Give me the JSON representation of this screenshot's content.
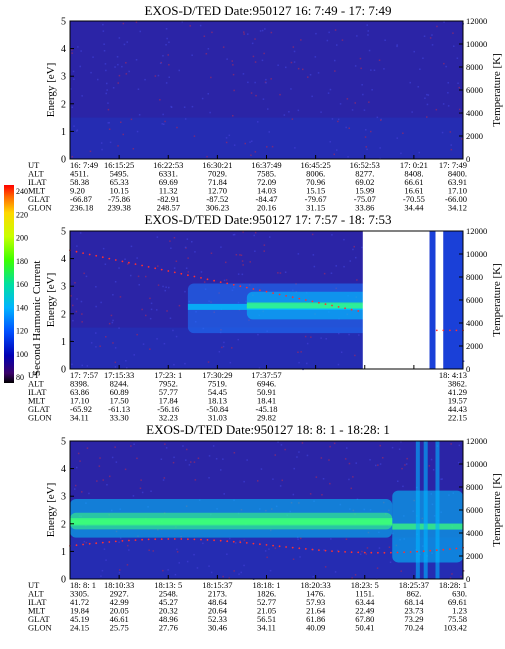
{
  "colorbar": {
    "label": "Second Harmonic Current",
    "ticks": [
      "240",
      "220",
      "200",
      "180",
      "160",
      "140",
      "120",
      "100",
      "80"
    ],
    "colors": [
      "#ff0000",
      "#ff6a00",
      "#ffd800",
      "#c8ff00",
      "#3cff00",
      "#00e0a0",
      "#00b4ff",
      "#0050ff",
      "#0000b4",
      "#3a006a",
      "#000000"
    ]
  },
  "chart_data": [
    {
      "type": "heatmap",
      "title": "EXOS-D/TED  Date:950127  16: 7:49 - 17: 7:49",
      "ylabel": "Energy [eV]",
      "ylabel_right": "Temperature [K]",
      "ylim": [
        0,
        5
      ],
      "ylim_right": [
        0,
        12000
      ],
      "yticks": [
        "0",
        "1",
        "2",
        "3",
        "4",
        "5"
      ],
      "yticks_right": [
        "0",
        "2000",
        "4000",
        "6000",
        "8000",
        "10000",
        "12000"
      ],
      "bands": [],
      "table": {
        "rows": [
          {
            "label": "UT",
            "values": [
              "16: 7:49",
              "16:15:25",
              "16:22:53",
              "16:30:21",
              "16:37:49",
              "16:45:25",
              "16:52:53",
              "17: 0:21",
              "17: 7:49"
            ]
          },
          {
            "label": "ALT",
            "values": [
              "4511.",
              "5495.",
              "6331.",
              "7029.",
              "7585.",
              "8006.",
              "8277.",
              "8408.",
              "8400."
            ]
          },
          {
            "label": "ILAT",
            "values": [
              "58.38",
              "65.33",
              "69.69",
              "71.84",
              "72.09",
              "70.96",
              "69.02",
              "66.61",
              "63.91"
            ]
          },
          {
            "label": "MLT",
            "values": [
              "9.20",
              "10.15",
              "11.32",
              "12.70",
              "14.03",
              "15.15",
              "15.99",
              "16.61",
              "17.10"
            ]
          },
          {
            "label": "GLAT",
            "values": [
              "-66.87",
              "-75.86",
              "-82.91",
              "-87.52",
              "-84.47",
              "-79.67",
              "-75.07",
              "-70.55",
              "-66.00"
            ]
          },
          {
            "label": "GLON",
            "values": [
              "236.18",
              "239.38",
              "248.57",
              "306.23",
              "20.16",
              "31.15",
              "33.86",
              "34.44",
              "34.12"
            ]
          }
        ]
      }
    },
    {
      "type": "heatmap",
      "title": "EXOS-D/TED  Date:950127  17: 7:57 - 18: 7:53",
      "ylabel": "Energy [eV]",
      "ylabel_right": "Temperature [K]",
      "ylim": [
        0,
        5
      ],
      "ylim_right": [
        0,
        12000
      ],
      "yticks": [
        "0",
        "1",
        "2",
        "3",
        "4",
        "5"
      ],
      "yticks_right": [
        "0",
        "2000",
        "4000",
        "6000",
        "8000",
        "10000",
        "12000"
      ],
      "bands": [
        {
          "t0": 0.3,
          "t1": 0.76,
          "e0": 1.3,
          "e1": 3.1,
          "core": 2.25,
          "level": 0.55
        },
        {
          "t0": 0.45,
          "t1": 0.76,
          "e0": 1.8,
          "e1": 2.8,
          "core": 2.3,
          "level": 0.75
        }
      ],
      "table": {
        "rows": [
          {
            "label": "UT",
            "values": [
              "17: 7:57",
              "17:15:33",
              "17:23: 1",
              "17:30:29",
              "17:37:57",
              "",
              "",
              "",
              "18: 4:13"
            ]
          },
          {
            "label": "ALT",
            "values": [
              "8398.",
              "8244.",
              "7952.",
              "7519.",
              "6946.",
              "",
              "",
              "",
              "3862."
            ]
          },
          {
            "label": "ILAT",
            "values": [
              "63.86",
              "60.89",
              "57.77",
              "54.45",
              "50.91",
              "",
              "",
              "",
              "41.29"
            ]
          },
          {
            "label": "MLT",
            "values": [
              "17.10",
              "17.50",
              "17.84",
              "18.13",
              "18.41",
              "",
              "",
              "",
              "19.57"
            ]
          },
          {
            "label": "GLAT",
            "values": [
              "-65.92",
              "-61.13",
              "-56.16",
              "-50.84",
              "-45.18",
              "",
              "",
              "",
              "44.43"
            ]
          },
          {
            "label": "GLON",
            "values": [
              "34.11",
              "33.30",
              "32.23",
              "31.03",
              "29.82",
              "",
              "",
              "",
              "22.15"
            ]
          }
        ]
      }
    },
    {
      "type": "heatmap",
      "title": "EXOS-D/TED  Date:950127  18: 8: 1 - 18:28: 1",
      "ylabel": "Energy [eV]",
      "ylabel_right": "Temperature [K]",
      "ylim": [
        0,
        5
      ],
      "ylim_right": [
        0,
        12000
      ],
      "yticks": [
        "0",
        "1",
        "2",
        "3",
        "4",
        "5"
      ],
      "yticks_right": [
        "0",
        "2000",
        "4000",
        "6000",
        "8000",
        "10000",
        "12000"
      ],
      "bands": [
        {
          "t0": 0.0,
          "t1": 0.82,
          "e0": 1.5,
          "e1": 2.9,
          "core": 2.1,
          "level": 0.65
        },
        {
          "t0": 0.0,
          "t1": 0.82,
          "e0": 1.8,
          "e1": 2.4,
          "core": 2.05,
          "level": 0.85
        },
        {
          "t0": 0.82,
          "t1": 1.0,
          "e0": 0.6,
          "e1": 3.2,
          "core": 1.9,
          "level": 0.7
        }
      ],
      "table": {
        "rows": [
          {
            "label": "UT",
            "values": [
              "18: 8: 1",
              "18:10:33",
              "18:13: 5",
              "18:15:37",
              "18:18: 1",
              "18:20:33",
              "18:23: 5",
              "18:25:37",
              "18:28: 1"
            ]
          },
          {
            "label": "ALT",
            "values": [
              "3305.",
              "2927.",
              "2548.",
              "2173.",
              "1826.",
              "1476.",
              "1151.",
              "862.",
              "630."
            ]
          },
          {
            "label": "ILAT",
            "values": [
              "41.72",
              "42.99",
              "45.27",
              "48.64",
              "52.77",
              "57.93",
              "63.44",
              "68.14",
              "69.61"
            ]
          },
          {
            "label": "MLT",
            "values": [
              "19.84",
              "20.05",
              "20.32",
              "20.64",
              "21.05",
              "21.64",
              "22.49",
              "23.73",
              "1.23"
            ]
          },
          {
            "label": "GLAT",
            "values": [
              "45.19",
              "46.61",
              "48.96",
              "52.33",
              "56.51",
              "61.86",
              "67.80",
              "73.29",
              "75.58"
            ]
          },
          {
            "label": "GLON",
            "values": [
              "24.15",
              "25.75",
              "27.76",
              "30.46",
              "34.11",
              "40.09",
              "50.41",
              "70.24",
              "103.42"
            ]
          }
        ]
      }
    }
  ]
}
